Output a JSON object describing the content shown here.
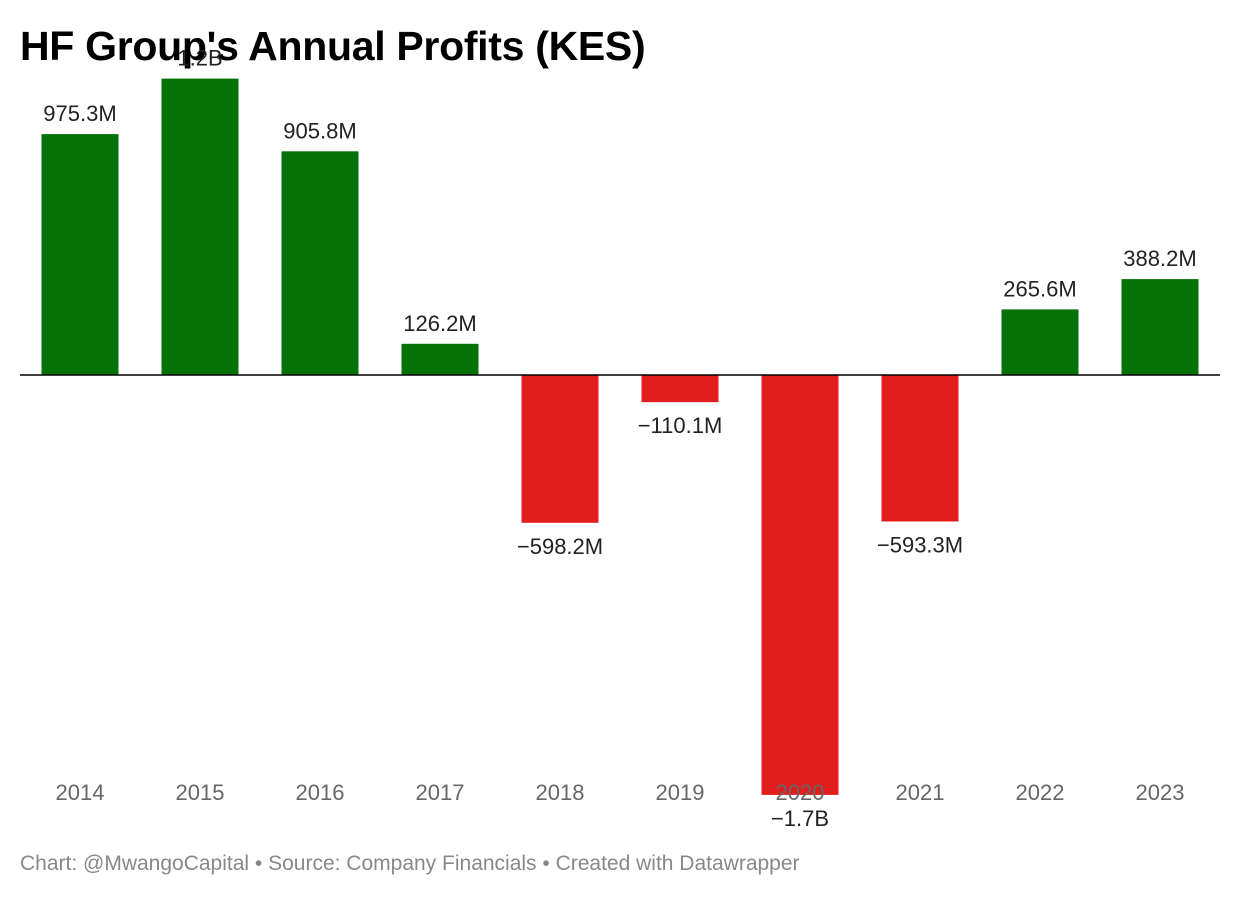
{
  "title": "HF Group's Annual Profits (KES)",
  "footer": "Chart: @MwangoCapital • Source: Company Financials • Created with Datawrapper",
  "colors": {
    "positive": "#047106",
    "negative": "#e11d1d",
    "baseline": "#000000",
    "value_text": "#222222",
    "tick_text": "#666666",
    "footer_text": "#888888"
  },
  "chart_data": {
    "type": "bar",
    "title": "HF Group's Annual Profits (KES)",
    "xlabel": "",
    "ylabel": "",
    "categories": [
      "2014",
      "2015",
      "2016",
      "2017",
      "2018",
      "2019",
      "2020",
      "2021",
      "2022",
      "2023"
    ],
    "values": [
      975300000,
      1200000000,
      905800000,
      126200000,
      -598200000,
      -110100000,
      -1700000000,
      -593300000,
      265600000,
      388200000
    ],
    "value_labels": [
      "975.3M",
      "1.2B",
      "905.8M",
      "126.2M",
      "−598.2M",
      "−110.1M",
      "−1.7B",
      "−593.3M",
      "265.6M",
      "388.2M"
    ],
    "ylim": [
      -1700000000,
      1200000000
    ],
    "grid": false,
    "legend": "none"
  }
}
